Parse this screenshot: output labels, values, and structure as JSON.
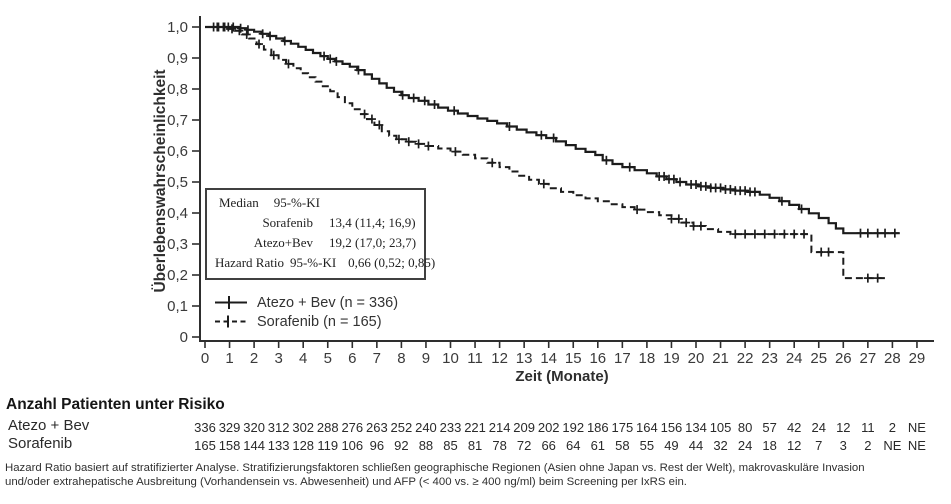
{
  "colors": {
    "curve": "#1c1c1c",
    "axis": "#2e2e2e",
    "text": "#333333"
  },
  "chart": {
    "y_axis": {
      "title": "Überlebenswahrscheinlichkeit",
      "ticks": [
        {
          "label": "1,0",
          "value": 1.0
        },
        {
          "label": "0,9",
          "value": 0.9
        },
        {
          "label": "0,8",
          "value": 0.8
        },
        {
          "label": "0,7",
          "value": 0.7
        },
        {
          "label": "0,6",
          "value": 0.6
        },
        {
          "label": "0,5",
          "value": 0.5
        },
        {
          "label": "0,4",
          "value": 0.4
        },
        {
          "label": "0,3",
          "value": 0.3
        },
        {
          "label": "0,2",
          "value": 0.2
        },
        {
          "label": "0,1",
          "value": 0.1
        },
        {
          "label": "0",
          "value": 0.0
        }
      ]
    },
    "x_axis": {
      "title": "Zeit (Monate)",
      "ticks": [
        "0",
        "1",
        "2",
        "3",
        "4",
        "5",
        "6",
        "7",
        "8",
        "9",
        "10",
        "11",
        "12",
        "13",
        "14",
        "15",
        "16",
        "17",
        "18",
        "19",
        "20",
        "21",
        "22",
        "23",
        "24",
        "25",
        "26",
        "27",
        "28",
        "29"
      ]
    },
    "inset": {
      "header_median": "Median",
      "header_ci": "95-%-KI",
      "row_sorafenib_label": "Sorafenib",
      "row_sorafenib_value": "13,4 (11,4; 16,9)",
      "row_atezo_label": "Atezo+Bev",
      "row_atezo_value": "19,2 (17,0; 23,7)",
      "hr_label": "Hazard Ratio",
      "hr_ci": "95-%-KI",
      "hr_value": "0,66 (0,52; 0,85)"
    },
    "legend": [
      {
        "label": "Atezo + Bev (n = 336)",
        "style": "solid"
      },
      {
        "label": "Sorafenib (n = 165)",
        "style": "dashed"
      }
    ]
  },
  "chart_data": {
    "type": "line",
    "subtype": "kaplan-meier-step",
    "title": "",
    "xlabel": "Zeit (Monate)",
    "ylabel": "Überlebenswahrscheinlichkeit",
    "xlim": [
      0,
      29
    ],
    "ylim": [
      0,
      1
    ],
    "grid": false,
    "legend_position": "bottom-left-inside",
    "annotations": {
      "median_sorafenib": "13,4 (11,4; 16,9)",
      "median_atezo_bev": "19,2 (17,0; 23,7)",
      "hazard_ratio_95ci": "0,66 (0,52; 0,85)"
    },
    "series": [
      {
        "name": "Atezo + Bev (n = 336)",
        "style": "solid",
        "points": [
          [
            0,
            1.0
          ],
          [
            1.4,
            0.996
          ],
          [
            1.7,
            0.991
          ],
          [
            2.0,
            0.985
          ],
          [
            2.3,
            0.978
          ],
          [
            2.6,
            0.971
          ],
          [
            2.9,
            0.963
          ],
          [
            3.2,
            0.955
          ],
          [
            3.5,
            0.946
          ],
          [
            3.8,
            0.936
          ],
          [
            4.1,
            0.926
          ],
          [
            4.4,
            0.916
          ],
          [
            4.7,
            0.906
          ],
          [
            5.0,
            0.897
          ],
          [
            5.3,
            0.889
          ],
          [
            5.6,
            0.881
          ],
          [
            5.9,
            0.872
          ],
          [
            6.2,
            0.861
          ],
          [
            6.5,
            0.847
          ],
          [
            6.8,
            0.833
          ],
          [
            7.1,
            0.818
          ],
          [
            7.4,
            0.804
          ],
          [
            7.7,
            0.791
          ],
          [
            8.0,
            0.78
          ],
          [
            8.3,
            0.771
          ],
          [
            8.7,
            0.762
          ],
          [
            9.1,
            0.75
          ],
          [
            9.5,
            0.74
          ],
          [
            9.9,
            0.73
          ],
          [
            10.3,
            0.721
          ],
          [
            10.7,
            0.713
          ],
          [
            11.1,
            0.705
          ],
          [
            11.5,
            0.697
          ],
          [
            11.9,
            0.689
          ],
          [
            12.3,
            0.679
          ],
          [
            12.7,
            0.669
          ],
          [
            13.1,
            0.66
          ],
          [
            13.5,
            0.651
          ],
          [
            13.9,
            0.642
          ],
          [
            14.3,
            0.631
          ],
          [
            14.7,
            0.619
          ],
          [
            15.1,
            0.607
          ],
          [
            15.5,
            0.597
          ],
          [
            15.9,
            0.587
          ],
          [
            16.2,
            0.57
          ],
          [
            16.6,
            0.558
          ],
          [
            17.0,
            0.548
          ],
          [
            17.5,
            0.538
          ],
          [
            18.0,
            0.528
          ],
          [
            18.4,
            0.518
          ],
          [
            18.8,
            0.509
          ],
          [
            19.2,
            0.5
          ],
          [
            19.6,
            0.492
          ],
          [
            20.1,
            0.486
          ],
          [
            20.6,
            0.481
          ],
          [
            21.1,
            0.476
          ],
          [
            21.6,
            0.472
          ],
          [
            22.1,
            0.468
          ],
          [
            22.6,
            0.459
          ],
          [
            23.0,
            0.449
          ],
          [
            23.4,
            0.438
          ],
          [
            23.8,
            0.426
          ],
          [
            24.2,
            0.413
          ],
          [
            24.6,
            0.399
          ],
          [
            25.0,
            0.384
          ],
          [
            25.4,
            0.367
          ],
          [
            25.7,
            0.35
          ],
          [
            26.0,
            0.335
          ],
          [
            28.3,
            0.335
          ]
        ],
        "censor_t": [
          0.35,
          0.55,
          0.75,
          0.95,
          1.15,
          1.45,
          1.75,
          2.35,
          2.65,
          3.25,
          4.85,
          5.1,
          5.35,
          6.25,
          8.05,
          8.5,
          8.95,
          9.35,
          10.15,
          12.4,
          13.7,
          14.2,
          16.35,
          17.3,
          18.5,
          18.7,
          18.9,
          19.1,
          19.35,
          19.8,
          20.0,
          20.2,
          20.4,
          20.6,
          20.8,
          21.0,
          21.2,
          21.4,
          21.6,
          21.8,
          22.0,
          22.2,
          22.4,
          23.5,
          24.3,
          26.7,
          27.0,
          27.4,
          27.7,
          28.1
        ]
      },
      {
        "name": "Sorafenib (n = 165)",
        "style": "dashed",
        "points": [
          [
            0,
            1.0
          ],
          [
            0.9,
            0.994
          ],
          [
            1.2,
            0.988
          ],
          [
            1.5,
            0.976
          ],
          [
            1.8,
            0.963
          ],
          [
            2.1,
            0.945
          ],
          [
            2.4,
            0.927
          ],
          [
            2.7,
            0.909
          ],
          [
            3.0,
            0.894
          ],
          [
            3.3,
            0.881
          ],
          [
            3.6,
            0.867
          ],
          [
            3.9,
            0.851
          ],
          [
            4.2,
            0.838
          ],
          [
            4.5,
            0.824
          ],
          [
            4.8,
            0.809
          ],
          [
            5.1,
            0.793
          ],
          [
            5.4,
            0.774
          ],
          [
            5.7,
            0.754
          ],
          [
            6.0,
            0.735
          ],
          [
            6.3,
            0.719
          ],
          [
            6.6,
            0.703
          ],
          [
            6.9,
            0.684
          ],
          [
            7.2,
            0.664
          ],
          [
            7.5,
            0.649
          ],
          [
            7.8,
            0.638
          ],
          [
            8.2,
            0.63
          ],
          [
            8.6,
            0.623
          ],
          [
            9.0,
            0.616
          ],
          [
            9.5,
            0.608
          ],
          [
            10.0,
            0.598
          ],
          [
            10.5,
            0.588
          ],
          [
            11.0,
            0.576
          ],
          [
            11.5,
            0.562
          ],
          [
            12.0,
            0.548
          ],
          [
            12.4,
            0.534
          ],
          [
            12.8,
            0.52
          ],
          [
            13.2,
            0.507
          ],
          [
            13.6,
            0.494
          ],
          [
            14.0,
            0.48
          ],
          [
            14.5,
            0.468
          ],
          [
            15.0,
            0.457
          ],
          [
            15.5,
            0.447
          ],
          [
            16.0,
            0.438
          ],
          [
            16.5,
            0.428
          ],
          [
            17.0,
            0.419
          ],
          [
            17.5,
            0.411
          ],
          [
            18.0,
            0.403
          ],
          [
            18.5,
            0.393
          ],
          [
            19.0,
            0.381
          ],
          [
            19.4,
            0.369
          ],
          [
            19.9,
            0.358
          ],
          [
            20.4,
            0.348
          ],
          [
            20.9,
            0.339
          ],
          [
            21.4,
            0.332
          ],
          [
            24.7,
            0.274
          ],
          [
            26.0,
            0.19
          ],
          [
            27.8,
            0.19
          ]
        ],
        "censor_t": [
          0.5,
          0.8,
          1.1,
          1.4,
          1.7,
          2.2,
          2.8,
          3.4,
          6.5,
          6.8,
          7.1,
          7.9,
          8.3,
          8.7,
          9.1,
          10.2,
          11.7,
          13.8,
          17.6,
          19.0,
          19.3,
          19.6,
          19.9,
          20.2,
          21.6,
          22.0,
          22.4,
          22.8,
          23.2,
          23.6,
          24.0,
          24.4,
          25.1,
          25.4,
          27.0,
          27.4
        ]
      }
    ]
  },
  "risk_table": {
    "title": "Anzahl Patienten unter Risiko",
    "rows": [
      {
        "label": "Atezo + Bev",
        "counts": [
          "336",
          "329",
          "320",
          "312",
          "302",
          "288",
          "276",
          "263",
          "252",
          "240",
          "233",
          "221",
          "214",
          "209",
          "202",
          "192",
          "186",
          "175",
          "164",
          "156",
          "134",
          "105",
          "80",
          "57",
          "42",
          "24",
          "12",
          "11",
          "2",
          "NE"
        ]
      },
      {
        "label": "Sorafenib",
        "counts": [
          "165",
          "158",
          "144",
          "133",
          "128",
          "119",
          "106",
          "96",
          "92",
          "88",
          "85",
          "81",
          "78",
          "72",
          "66",
          "64",
          "61",
          "58",
          "55",
          "49",
          "44",
          "32",
          "24",
          "18",
          "12",
          "7",
          "3",
          "2",
          "NE",
          "NE"
        ]
      }
    ]
  },
  "footnote": {
    "line1": "Hazard Ratio basiert auf stratifizierter Analyse. Stratifizierungsfaktoren schließen geographische Regionen (Asien ohne Japan vs. Rest der Welt), makrovaskuläre Invasion",
    "line2": "und/oder extrahepatische Ausbreitung (Vorhandensein vs. Abwesenheit) und AFP (< 400 vs. ≥ 400 ng/ml) beim Screening per IxRS ein."
  }
}
